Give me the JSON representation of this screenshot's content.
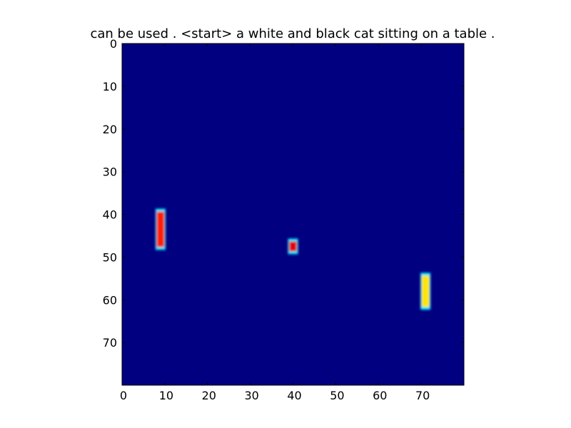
{
  "chart_data": {
    "type": "heatmap",
    "title": "can be used . <start> a white and black cat sitting on a table .",
    "xlabel": "",
    "ylabel": "",
    "xlim": [
      0,
      80
    ],
    "ylim": [
      80,
      0
    ],
    "grid": false,
    "colormap": "jet",
    "xticks": [
      0,
      10,
      20,
      30,
      40,
      50,
      60,
      70
    ],
    "yticks": [
      0,
      10,
      20,
      30,
      40,
      50,
      60,
      70
    ],
    "xtick_labels": [
      "0",
      "10",
      "20",
      "30",
      "40",
      "50",
      "60",
      "70"
    ],
    "ytick_labels": [
      "0",
      "10",
      "20",
      "30",
      "40",
      "50",
      "60",
      "70"
    ],
    "background_value": 0.0,
    "hotspots": [
      {
        "name": "bar-left",
        "x": [
          8,
          10
        ],
        "y": [
          39,
          48
        ],
        "value": 0.85
      },
      {
        "name": "bar-middle",
        "x": [
          39,
          41
        ],
        "y": [
          46,
          49
        ],
        "value": 0.9
      },
      {
        "name": "bar-right",
        "x": [
          70,
          72
        ],
        "y": [
          54,
          62
        ],
        "value": 0.65
      }
    ]
  }
}
